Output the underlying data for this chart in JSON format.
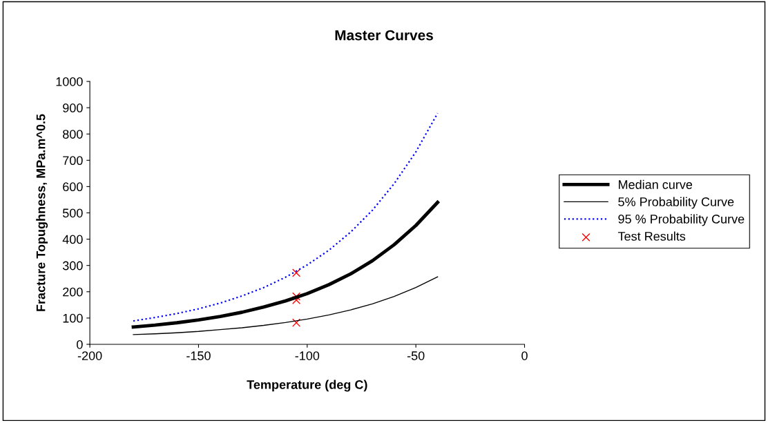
{
  "chart_data": {
    "type": "line",
    "title": "Master Curves",
    "xlabel": "Temperature (deg C)",
    "ylabel": "Fracture Topughness, MPa.m^0.5",
    "xlim": [
      -200,
      0
    ],
    "xticks": [
      -200,
      -150,
      -100,
      -50,
      0
    ],
    "ylim": [
      0,
      1000
    ],
    "yticks": [
      0,
      100,
      200,
      300,
      400,
      500,
      600,
      700,
      800,
      900,
      1000
    ],
    "grid": false,
    "legend": "right",
    "series": [
      {
        "name": "Median curve",
        "color": "#000000",
        "marker": "none",
        "line_style": "solid",
        "x": [
          -180,
          -170,
          -160,
          -150,
          -140,
          -130,
          -120,
          -110,
          -100,
          -90,
          -80,
          -70,
          -60,
          -50,
          -40
        ],
        "values": [
          66,
          73,
          82,
          93,
          106,
          122,
          142,
          165,
          193,
          227,
          268,
          318,
          379,
          452,
          540
        ]
      },
      {
        "name": "5% Probability Curve",
        "color": "#000000",
        "marker": "none",
        "line_style": "solid",
        "x": [
          -180,
          -170,
          -160,
          -150,
          -140,
          -130,
          -120,
          -110,
          -100,
          -90,
          -80,
          -70,
          -60,
          -50,
          -40
        ],
        "values": [
          37,
          40,
          44,
          49,
          56,
          63,
          72,
          83,
          96,
          112,
          131,
          154,
          182,
          216,
          257
        ]
      },
      {
        "name": "95 % Probability Curve",
        "color": "#0000ff",
        "marker": "none",
        "line_style": "dotted",
        "x": [
          -180,
          -170,
          -160,
          -150,
          -140,
          -130,
          -120,
          -110,
          -100,
          -90,
          -80,
          -70,
          -60,
          -50,
          -40
        ],
        "values": [
          89,
          102,
          117,
          135,
          157,
          184,
          216,
          255,
          302,
          358,
          427,
          510,
          611,
          732,
          879
        ]
      },
      {
        "name": "Test Results",
        "color": "#ff0000",
        "type": "scatter",
        "marker": "cross",
        "x": [
          -105,
          -105,
          -105,
          -105
        ],
        "values": [
          272,
          182,
          168,
          82
        ]
      }
    ]
  }
}
